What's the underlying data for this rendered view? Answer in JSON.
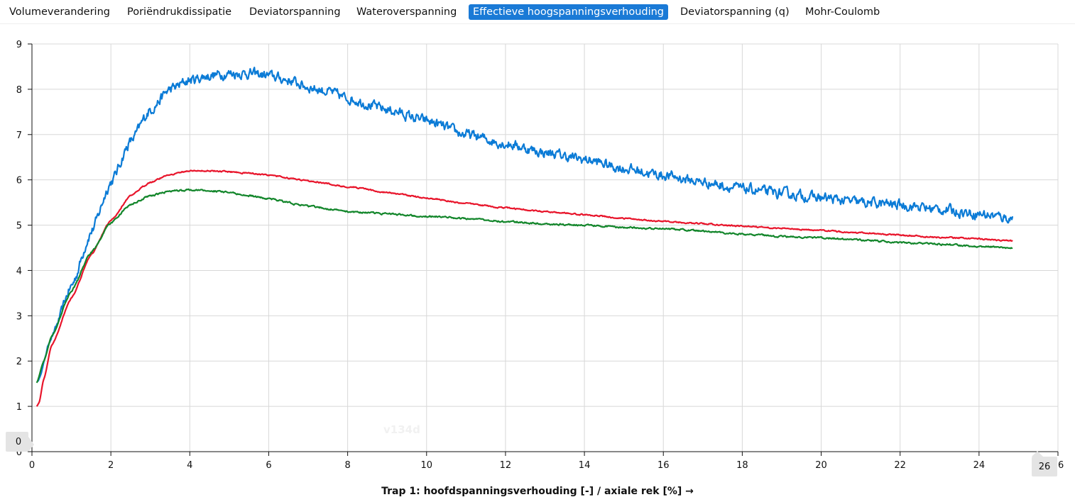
{
  "tabs": [
    {
      "label": "Volumeverandering",
      "active": false
    },
    {
      "label": "Poriëndrukdissipatie",
      "active": false
    },
    {
      "label": "Deviatorspanning",
      "active": false
    },
    {
      "label": "Wateroverspanning",
      "active": false
    },
    {
      "label": "Effectieve hoogspanningsverhouding",
      "active": true
    },
    {
      "label": "Deviatorspanning (q)",
      "active": false
    },
    {
      "label": "Mohr-Coulomb",
      "active": false
    }
  ],
  "range_handles": {
    "y_min": "0",
    "x_max": "26"
  },
  "watermark": "v134d",
  "colors": {
    "active_tab": "#1a7ad6",
    "grid": "#d8d8d8",
    "handle_bg": "#e4e4e4"
  },
  "chart_data": {
    "type": "line",
    "title": "",
    "xlabel": "Trap 1: hoofdspanningsverhouding [-] / axiale rek [%] →",
    "ylabel": "",
    "xlim": [
      0,
      26
    ],
    "ylim": [
      0,
      9
    ],
    "x_ticks": [
      0,
      2,
      4,
      6,
      8,
      10,
      12,
      14,
      16,
      18,
      20,
      22,
      24,
      26
    ],
    "y_ticks": [
      0,
      1,
      2,
      3,
      4,
      5,
      6,
      7,
      8,
      9
    ],
    "grid": true,
    "legend": "none",
    "series": [
      {
        "color": "#0b7bd6",
        "noise": 0.09,
        "x": [
          0.15,
          0.5,
          1.0,
          1.5,
          2.0,
          2.5,
          3.0,
          3.5,
          4.0,
          4.5,
          5.0,
          5.5,
          6.0,
          6.5,
          7.0,
          7.5,
          8.0,
          9.0,
          10.0,
          11.0,
          12.0,
          13.0,
          14.0,
          15.0,
          16.0,
          17.0,
          18.0,
          19.0,
          20.0,
          21.0,
          22.0,
          23.0,
          24.0,
          24.85
        ],
        "y": [
          1.55,
          2.55,
          3.65,
          4.85,
          5.95,
          6.85,
          7.55,
          8.0,
          8.2,
          8.3,
          8.35,
          8.35,
          8.3,
          8.2,
          8.05,
          7.95,
          7.8,
          7.55,
          7.3,
          7.0,
          6.8,
          6.6,
          6.45,
          6.25,
          6.1,
          5.95,
          5.8,
          5.7,
          5.6,
          5.5,
          5.45,
          5.35,
          5.25,
          5.15
        ]
      },
      {
        "color": "#e8152b",
        "noise": 0.012,
        "x": [
          0.12,
          0.18,
          0.3,
          0.5,
          1.0,
          1.5,
          2.0,
          2.5,
          3.0,
          3.5,
          4.0,
          4.5,
          5.0,
          5.5,
          6.0,
          7.0,
          8.0,
          9.0,
          10.0,
          11.0,
          12.0,
          13.0,
          14.0,
          15.0,
          16.0,
          17.0,
          18.0,
          19.0,
          20.0,
          21.0,
          22.0,
          23.0,
          24.0,
          24.85
        ],
        "y": [
          1.0,
          1.08,
          1.6,
          2.35,
          3.4,
          4.35,
          5.1,
          5.65,
          5.95,
          6.12,
          6.2,
          6.2,
          6.18,
          6.15,
          6.1,
          5.98,
          5.85,
          5.72,
          5.6,
          5.48,
          5.38,
          5.3,
          5.23,
          5.15,
          5.08,
          5.03,
          4.98,
          4.93,
          4.88,
          4.83,
          4.78,
          4.73,
          4.7,
          4.65
        ]
      },
      {
        "color": "#13862b",
        "noise": 0.015,
        "x": [
          0.12,
          0.3,
          0.5,
          1.0,
          1.5,
          2.0,
          2.5,
          3.0,
          3.5,
          4.0,
          4.5,
          5.0,
          5.5,
          6.0,
          7.0,
          8.0,
          9.0,
          10.0,
          11.0,
          12.0,
          13.0,
          14.0,
          15.0,
          16.0,
          17.0,
          18.0,
          19.0,
          20.0,
          21.0,
          22.0,
          23.0,
          24.0,
          24.85
        ],
        "y": [
          1.52,
          2.0,
          2.55,
          3.55,
          4.4,
          5.05,
          5.45,
          5.65,
          5.75,
          5.78,
          5.76,
          5.72,
          5.65,
          5.58,
          5.42,
          5.3,
          5.25,
          5.2,
          5.15,
          5.08,
          5.03,
          5.0,
          4.95,
          4.92,
          4.87,
          4.8,
          4.75,
          4.72,
          4.67,
          4.62,
          4.58,
          4.53,
          4.5
        ]
      }
    ]
  }
}
